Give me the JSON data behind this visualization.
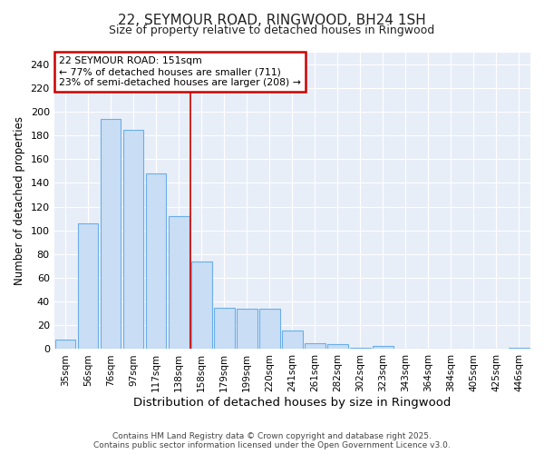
{
  "title1": "22, SEYMOUR ROAD, RINGWOOD, BH24 1SH",
  "title2": "Size of property relative to detached houses in Ringwood",
  "xlabel": "Distribution of detached houses by size in Ringwood",
  "ylabel": "Number of detached properties",
  "categories": [
    "35sqm",
    "56sqm",
    "76sqm",
    "97sqm",
    "117sqm",
    "138sqm",
    "158sqm",
    "179sqm",
    "199sqm",
    "220sqm",
    "241sqm",
    "261sqm",
    "282sqm",
    "302sqm",
    "323sqm",
    "343sqm",
    "364sqm",
    "384sqm",
    "405sqm",
    "425sqm",
    "446sqm"
  ],
  "values": [
    8,
    106,
    194,
    185,
    148,
    112,
    74,
    35,
    34,
    34,
    16,
    5,
    4,
    1,
    3,
    0,
    0,
    0,
    0,
    0,
    1
  ],
  "bar_color": "#c9ddf5",
  "bar_edge_color": "#6aaee8",
  "annotation_box_text": "22 SEYMOUR ROAD: 151sqm\n← 77% of detached houses are smaller (711)\n23% of semi-detached houses are larger (208) →",
  "annotation_box_color": "#ffffff",
  "annotation_box_edge_color": "#cc0000",
  "vline_x": 5.5,
  "vline_color": "#cc0000",
  "ylim": [
    0,
    250
  ],
  "yticks": [
    0,
    20,
    40,
    60,
    80,
    100,
    120,
    140,
    160,
    180,
    200,
    220,
    240
  ],
  "plot_bg_color": "#e8eef8",
  "fig_bg_color": "#ffffff",
  "grid_color": "#ffffff",
  "footer_text": "Contains HM Land Registry data © Crown copyright and database right 2025.\nContains public sector information licensed under the Open Government Licence v3.0."
}
